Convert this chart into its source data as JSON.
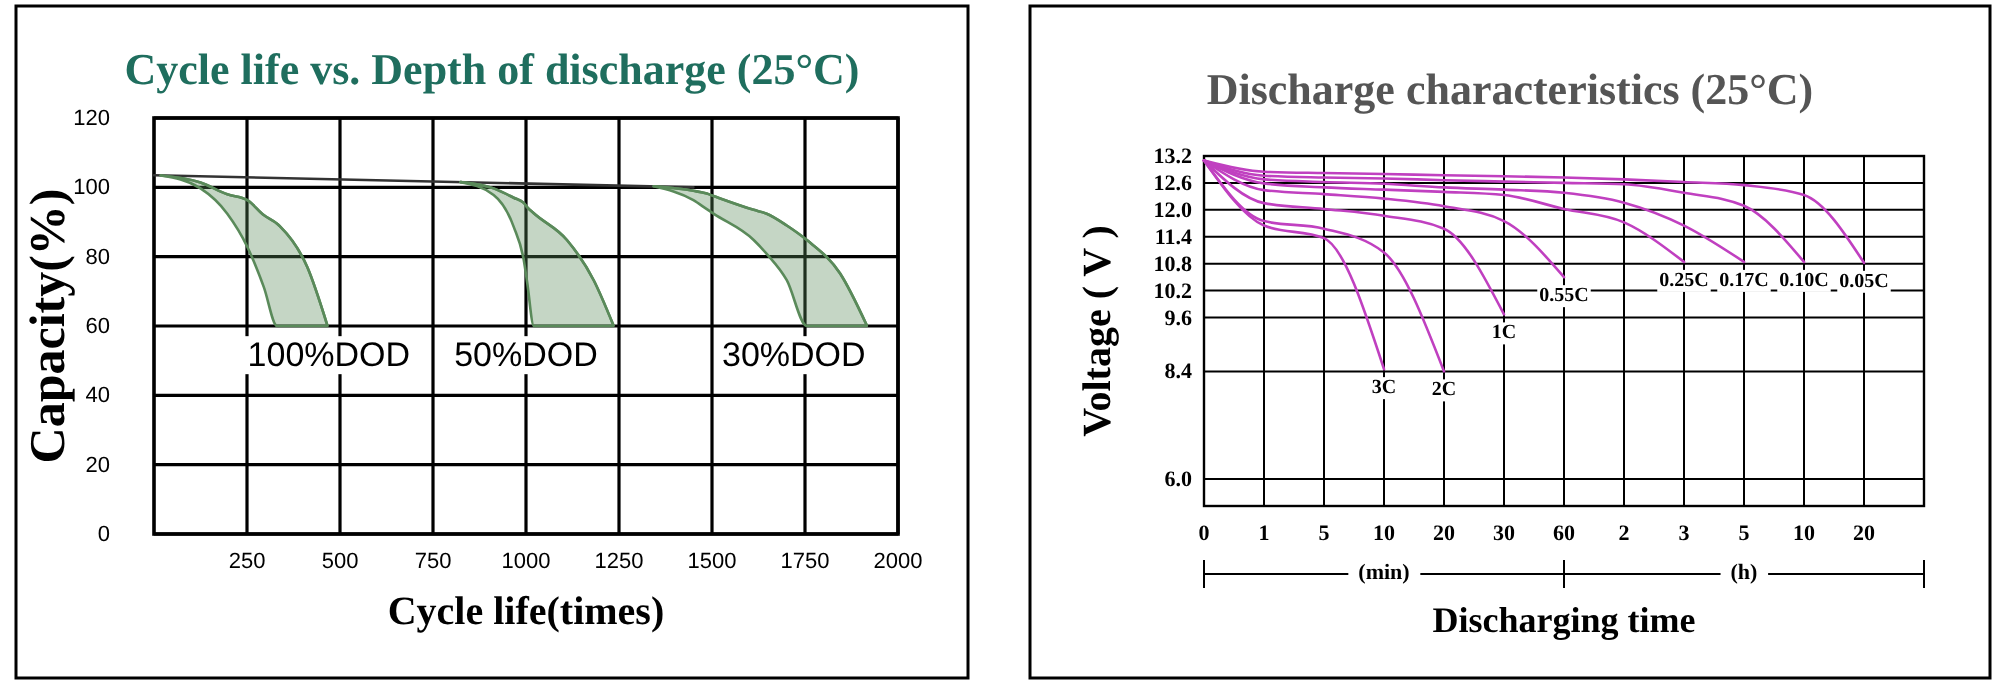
{
  "chart_data": [
    {
      "type": "line",
      "title": "Cycle life vs. Depth of discharge (25°C)",
      "xlabel": "Cycle life(times)",
      "ylabel": "Capacity(%)",
      "xlim": [
        0,
        2000
      ],
      "xticks": [
        250,
        500,
        750,
        1000,
        1250,
        1500,
        1750,
        2000
      ],
      "ylim": [
        0,
        120
      ],
      "yticks": [
        0,
        20,
        40,
        60,
        80,
        100,
        120
      ],
      "grid": true,
      "marker": "none",
      "line_style": "solid",
      "series": [
        {
          "color": "#333333",
          "x": [
            0,
            1450
          ],
          "values": [
            103.5,
            100
          ]
        },
        {
          "color": "#5a8a5a",
          "x": [
            18,
            125,
            197,
            251,
            295,
            331,
            340,
            412,
            466
          ],
          "values": [
            103.4,
            101.4,
            98,
            96.3,
            92,
            89.5,
            88.6,
            77,
            60.2
          ],
          "lower": [
            103.4,
            99.7,
            92.4,
            82.8,
            71.3,
            60,
            60,
            60,
            60
          ],
          "upper": [
            103.4,
            101.4,
            98,
            96.3,
            92,
            89.5,
            88.6,
            77,
            60.2
          ]
        },
        {
          "color": "#5a8a5a",
          "x": [
            824,
            913,
            967,
            994,
            1003,
            1021,
            1110,
            1182,
            1235
          ],
          "values": [
            101.5,
            99.7,
            97,
            95.5,
            94.3,
            92.5,
            84.8,
            73.2,
            60.2
          ],
          "lower": [
            101.5,
            97.8,
            88.6,
            79,
            72.7,
            60,
            60,
            60,
            60
          ],
          "upper": [
            101.5,
            99.7,
            97,
            95.5,
            94.3,
            92.5,
            84.8,
            73.2,
            60.2
          ]
        },
        {
          "color": "#5a8a5a",
          "x": [
            1343,
            1450,
            1486,
            1504,
            1612,
            1647,
            1701,
            1755,
            1844,
            1916
          ],
          "values": [
            100.3,
            99,
            98.2,
            97.5,
            93.5,
            92.4,
            89,
            84.8,
            75.2,
            60.2
          ],
          "lower": [
            100.3,
            96.3,
            93.7,
            92.4,
            84.8,
            80.8,
            73.2,
            60,
            60,
            60
          ],
          "upper": [
            100.3,
            99,
            98.2,
            97.5,
            93.5,
            92.4,
            89,
            84.8,
            75.2,
            60.2
          ]
        }
      ],
      "annotations": [
        "100%DOD",
        "50%DOD",
        "30%DOD"
      ]
    },
    {
      "type": "line",
      "title": "Discharge characteristics (25°C)",
      "xlabel": "Discharging time",
      "ylabel": "Voltage ( V )",
      "categories": [
        "0",
        "1",
        "5",
        "10",
        "20",
        "30",
        "60",
        "2",
        "3",
        "5",
        "10",
        "20",
        null
      ],
      "ylim": [
        5.4,
        13.2
      ],
      "yticks": [
        {
          "value": 6,
          "label": "6.0"
        },
        8.4,
        9.6,
        10.2,
        10.8,
        11.4,
        {
          "value": 12,
          "label": "12.0"
        },
        12.6,
        13.2
      ],
      "grid": true,
      "marker": "none",
      "line_style": "solid",
      "series": [
        {
          "name": "3C",
          "color": "#c040c0",
          "values": [
            13.1,
            11.65,
            11.37,
            8.45,
            null,
            null,
            null,
            null,
            null,
            null,
            null,
            null,
            null
          ]
        },
        {
          "name": "2C",
          "color": "#c040c0",
          "values": [
            13.1,
            11.75,
            11.58,
            11.05,
            8.4,
            null,
            null,
            null,
            null,
            null,
            null,
            null,
            null
          ]
        },
        {
          "name": "1C",
          "color": "#c040c0",
          "values": [
            13.1,
            12.15,
            12.02,
            11.87,
            11.58,
            9.67,
            null,
            null,
            null,
            null,
            null,
            null,
            null
          ]
        },
        {
          "name": "0.55C",
          "color": "#c040c0",
          "values": [
            13.1,
            12.44,
            12.35,
            12.25,
            12.08,
            11.75,
            10.5,
            null,
            null,
            null,
            null,
            null,
            null
          ]
        },
        {
          "name": "0.25C",
          "color": "#c040c0",
          "values": [
            13.1,
            12.59,
            12.5,
            12.45,
            12.4,
            12.33,
            12.02,
            11.72,
            10.84,
            null,
            null,
            null,
            null
          ]
        },
        {
          "name": "0.17C",
          "color": "#c040c0",
          "values": [
            13.1,
            12.68,
            12.62,
            12.58,
            12.5,
            12.45,
            12.38,
            12.16,
            11.65,
            10.84,
            null,
            null,
            null
          ]
        },
        {
          "name": "0.10C",
          "color": "#c040c0",
          "values": [
            13.1,
            12.76,
            12.72,
            12.7,
            12.66,
            12.63,
            12.6,
            12.57,
            12.38,
            12.09,
            10.84,
            null,
            null
          ]
        },
        {
          "name": "0.05C",
          "color": "#c040c0",
          "values": [
            13.1,
            12.85,
            12.82,
            12.8,
            12.77,
            12.75,
            12.72,
            12.68,
            12.62,
            12.55,
            12.33,
            10.82,
            null
          ]
        }
      ],
      "annotations": [
        "(min)",
        "(h)"
      ]
    }
  ]
}
